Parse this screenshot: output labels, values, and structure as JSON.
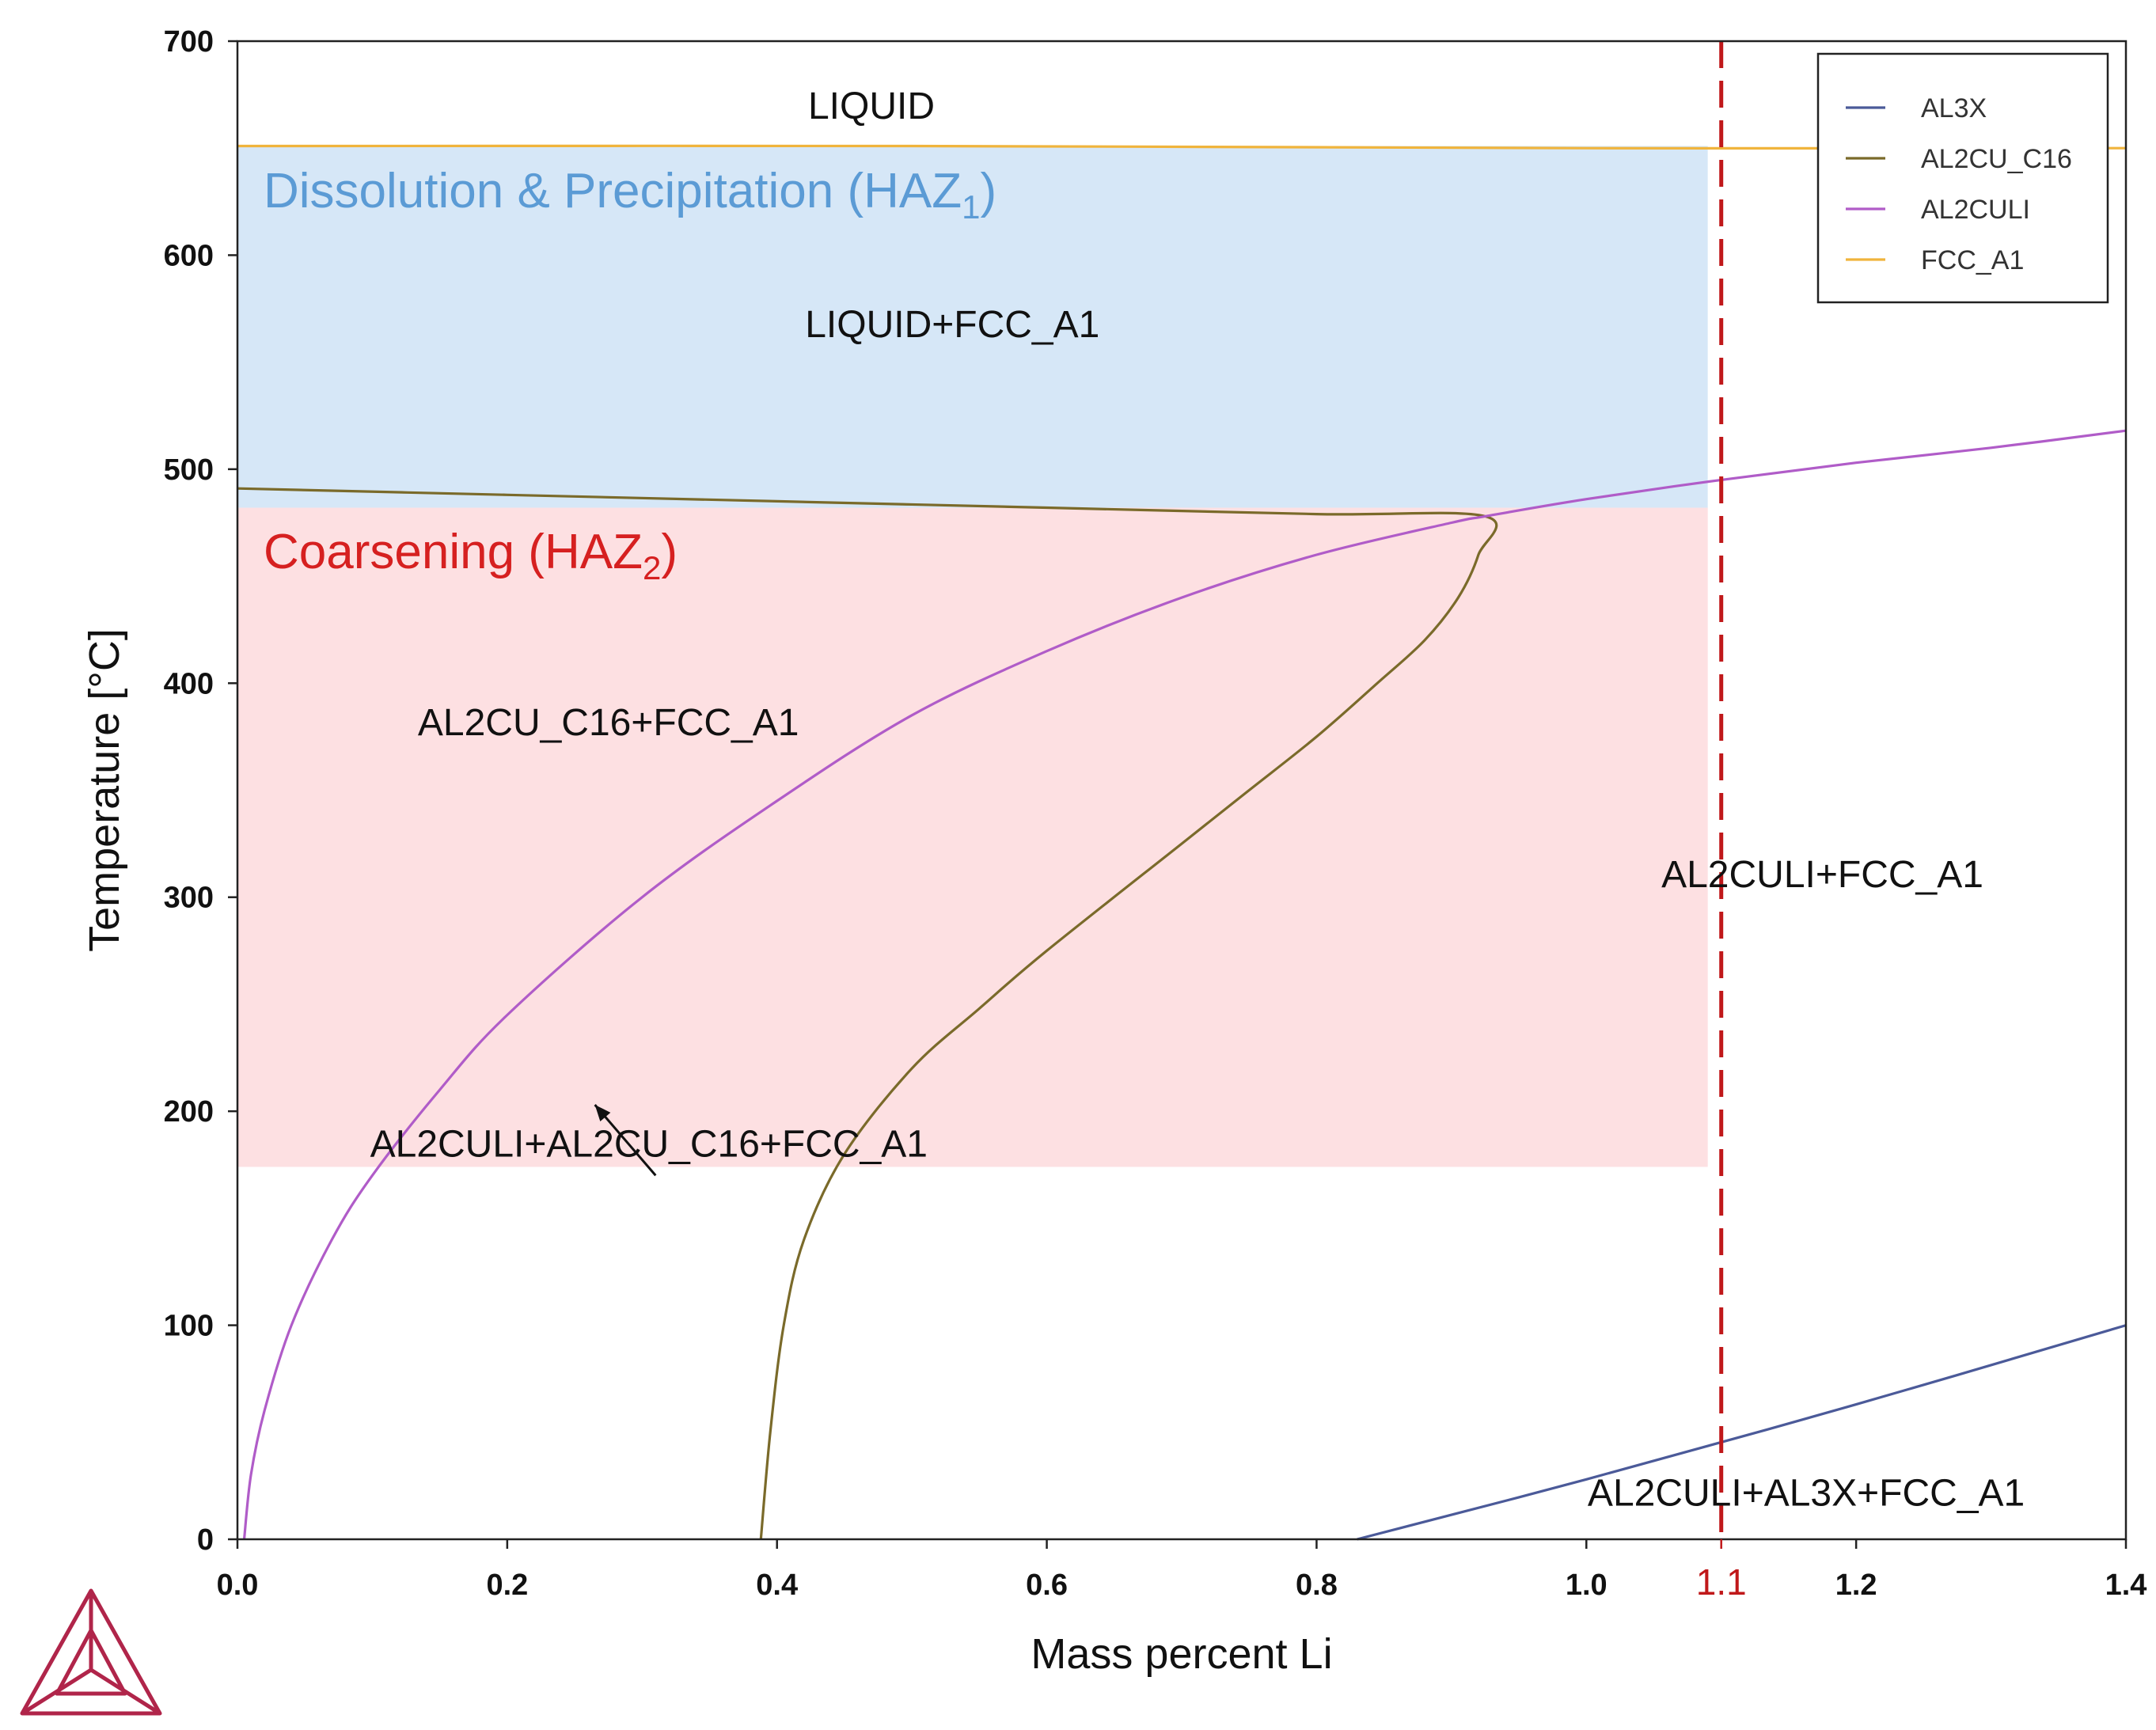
{
  "chart_data": {
    "type": "line",
    "title": "",
    "xlabel": "Mass percent Li",
    "ylabel": "Temperature [°C]",
    "xlim": [
      0.0,
      1.4
    ],
    "ylim": [
      0,
      700
    ],
    "x_ticks": [
      "0.0",
      "0.2",
      "0.4",
      "0.6",
      "0.8",
      "1.0",
      "1.2",
      "1.4"
    ],
    "y_ticks": [
      "0",
      "100",
      "200",
      "300",
      "400",
      "500",
      "600",
      "700"
    ],
    "grid": false,
    "legend_position": "top-right",
    "colors": {
      "AL3X": "#4b5a99",
      "AL2CU_C16": "#7a6a2a",
      "AL2CULI": "#b05cc8",
      "FCC_A1": "#f0b43c",
      "haz1_fill": "#d6e7f7",
      "haz2_fill": "#fde0e2",
      "haz1_text": "#5b9bd5",
      "haz2_text": "#d62020",
      "marker_line": "#c0181a"
    },
    "series": [
      {
        "name": "AL3X",
        "x": [
          0.83,
          1.0,
          1.2,
          1.4
        ],
        "y": [
          0,
          28,
          63,
          100
        ]
      },
      {
        "name": "AL2CU_C16",
        "x": [
          0.0,
          0.2,
          0.4,
          0.6,
          0.8,
          0.925,
          0.92,
          0.905,
          0.88,
          0.845,
          0.8,
          0.75,
          0.7,
          0.6,
          0.55,
          0.5,
          0.45,
          0.42,
          0.405,
          0.395,
          0.388
        ],
        "y": [
          491,
          488,
          485,
          482,
          479,
          478,
          460,
          440,
          420,
          400,
          375,
          350,
          325,
          275,
          248,
          220,
          180,
          140,
          100,
          50,
          0
        ]
      },
      {
        "name": "AL2CULI",
        "x": [
          0.005,
          0.01,
          0.02,
          0.04,
          0.07,
          0.1,
          0.15,
          0.2,
          0.3,
          0.4,
          0.5,
          0.6,
          0.7,
          0.8,
          0.9,
          0.925,
          1.0,
          1.1,
          1.2,
          1.3,
          1.4
        ],
        "y": [
          0,
          30,
          60,
          100,
          140,
          170,
          210,
          245,
          300,
          345,
          385,
          415,
          440,
          460,
          475,
          478,
          486,
          495,
          503,
          510,
          518
        ]
      },
      {
        "name": "FCC_A1",
        "x": [
          0.0,
          0.5,
          1.0,
          1.4
        ],
        "y": [
          651,
          651,
          650,
          650
        ]
      }
    ],
    "marker": {
      "x": 1.1,
      "label": "1.1"
    },
    "regions": [
      {
        "name": "haz1",
        "x": [
          0.0,
          1.09
        ],
        "y": [
          482,
          651
        ],
        "label": "Dissolution & Precipitation (HAZ",
        "subscript": "1",
        "suffix": ")"
      },
      {
        "name": "haz2",
        "x": [
          0.0,
          1.09
        ],
        "y": [
          174,
          482
        ],
        "label": "Coarsening (HAZ",
        "subscript": "2",
        "suffix": ")"
      }
    ],
    "phase_labels": [
      {
        "text": "LIQUID",
        "x": 0.47,
        "y": 670
      },
      {
        "text": "LIQUID+FCC_A1",
        "x": 0.53,
        "y": 568
      },
      {
        "text": "AL2CU_C16+FCC_A1",
        "x": 0.275,
        "y": 382
      },
      {
        "text": "AL2CULI+FCC_A1",
        "x": 1.175,
        "y": 311
      },
      {
        "text": "AL2CULI+AL2CU_C16+FCC_A1",
        "x": 0.305,
        "y": 185
      },
      {
        "text": "AL2CULI+AL3X+FCC_A1",
        "x": 1.163,
        "y": 22
      }
    ],
    "arrow": {
      "from": [
        0.31,
        170
      ],
      "to": [
        0.265,
        203
      ]
    }
  }
}
